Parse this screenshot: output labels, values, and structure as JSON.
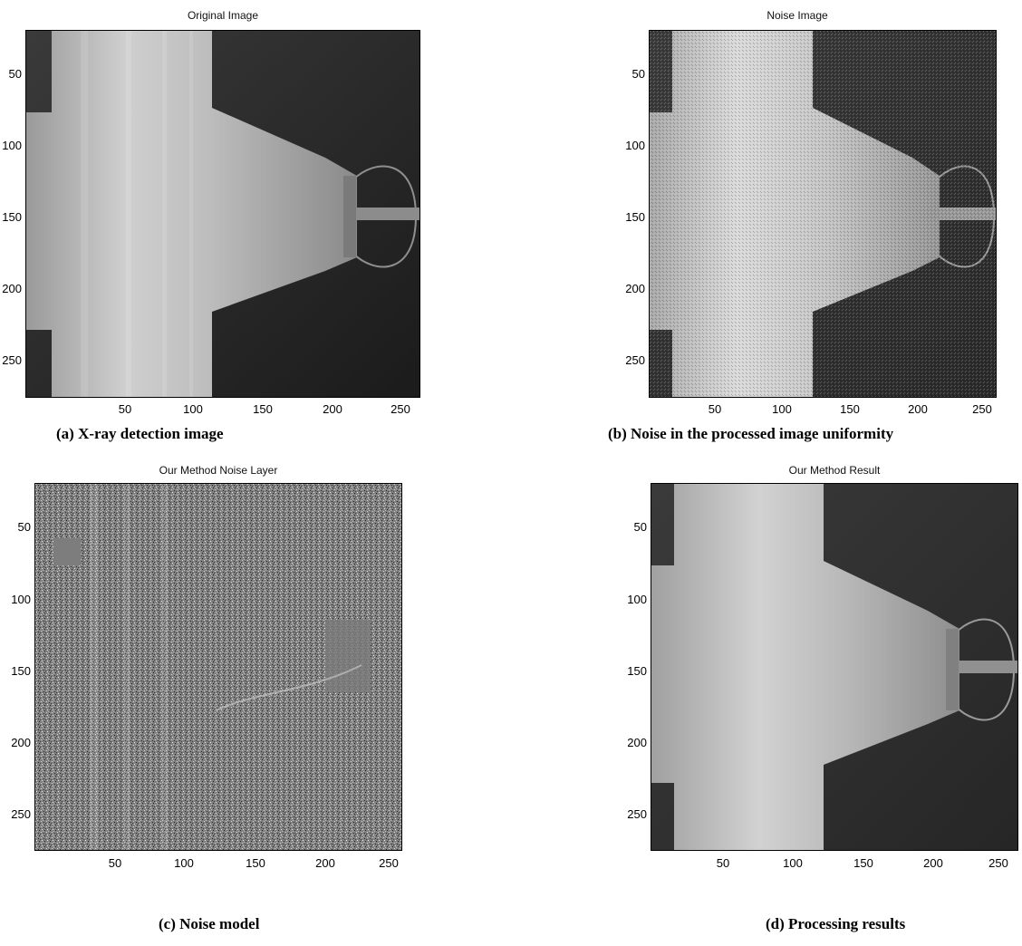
{
  "figure": {
    "panels": [
      {
        "id": "a",
        "title": "Original Image",
        "caption": "(a) X-ray detection image",
        "yticks": [
          "50",
          "100",
          "150",
          "200",
          "250"
        ],
        "xticks": [
          "50",
          "100",
          "150",
          "200",
          "250"
        ],
        "render": "smooth"
      },
      {
        "id": "b",
        "title": "Noise Image",
        "caption": "(b) Noise in the processed image uniformity",
        "yticks": [
          "50",
          "100",
          "150",
          "200",
          "250"
        ],
        "xticks": [
          "50",
          "100",
          "150",
          "200",
          "250"
        ],
        "render": "noisy"
      },
      {
        "id": "c",
        "title": "Our Method Noise Layer",
        "caption": "(c) Noise model",
        "yticks": [
          "50",
          "100",
          "150",
          "200",
          "250"
        ],
        "xticks": [
          "50",
          "100",
          "150",
          "200",
          "250"
        ],
        "render": "noise-layer"
      },
      {
        "id": "d",
        "title": "Our Method Result",
        "caption": "(d) Processing results",
        "yticks": [
          "50",
          "100",
          "150",
          "200",
          "250"
        ],
        "xticks": [
          "50",
          "100",
          "150",
          "200",
          "250"
        ],
        "render": "denoised"
      }
    ],
    "axis_range": [
      1,
      256
    ]
  }
}
